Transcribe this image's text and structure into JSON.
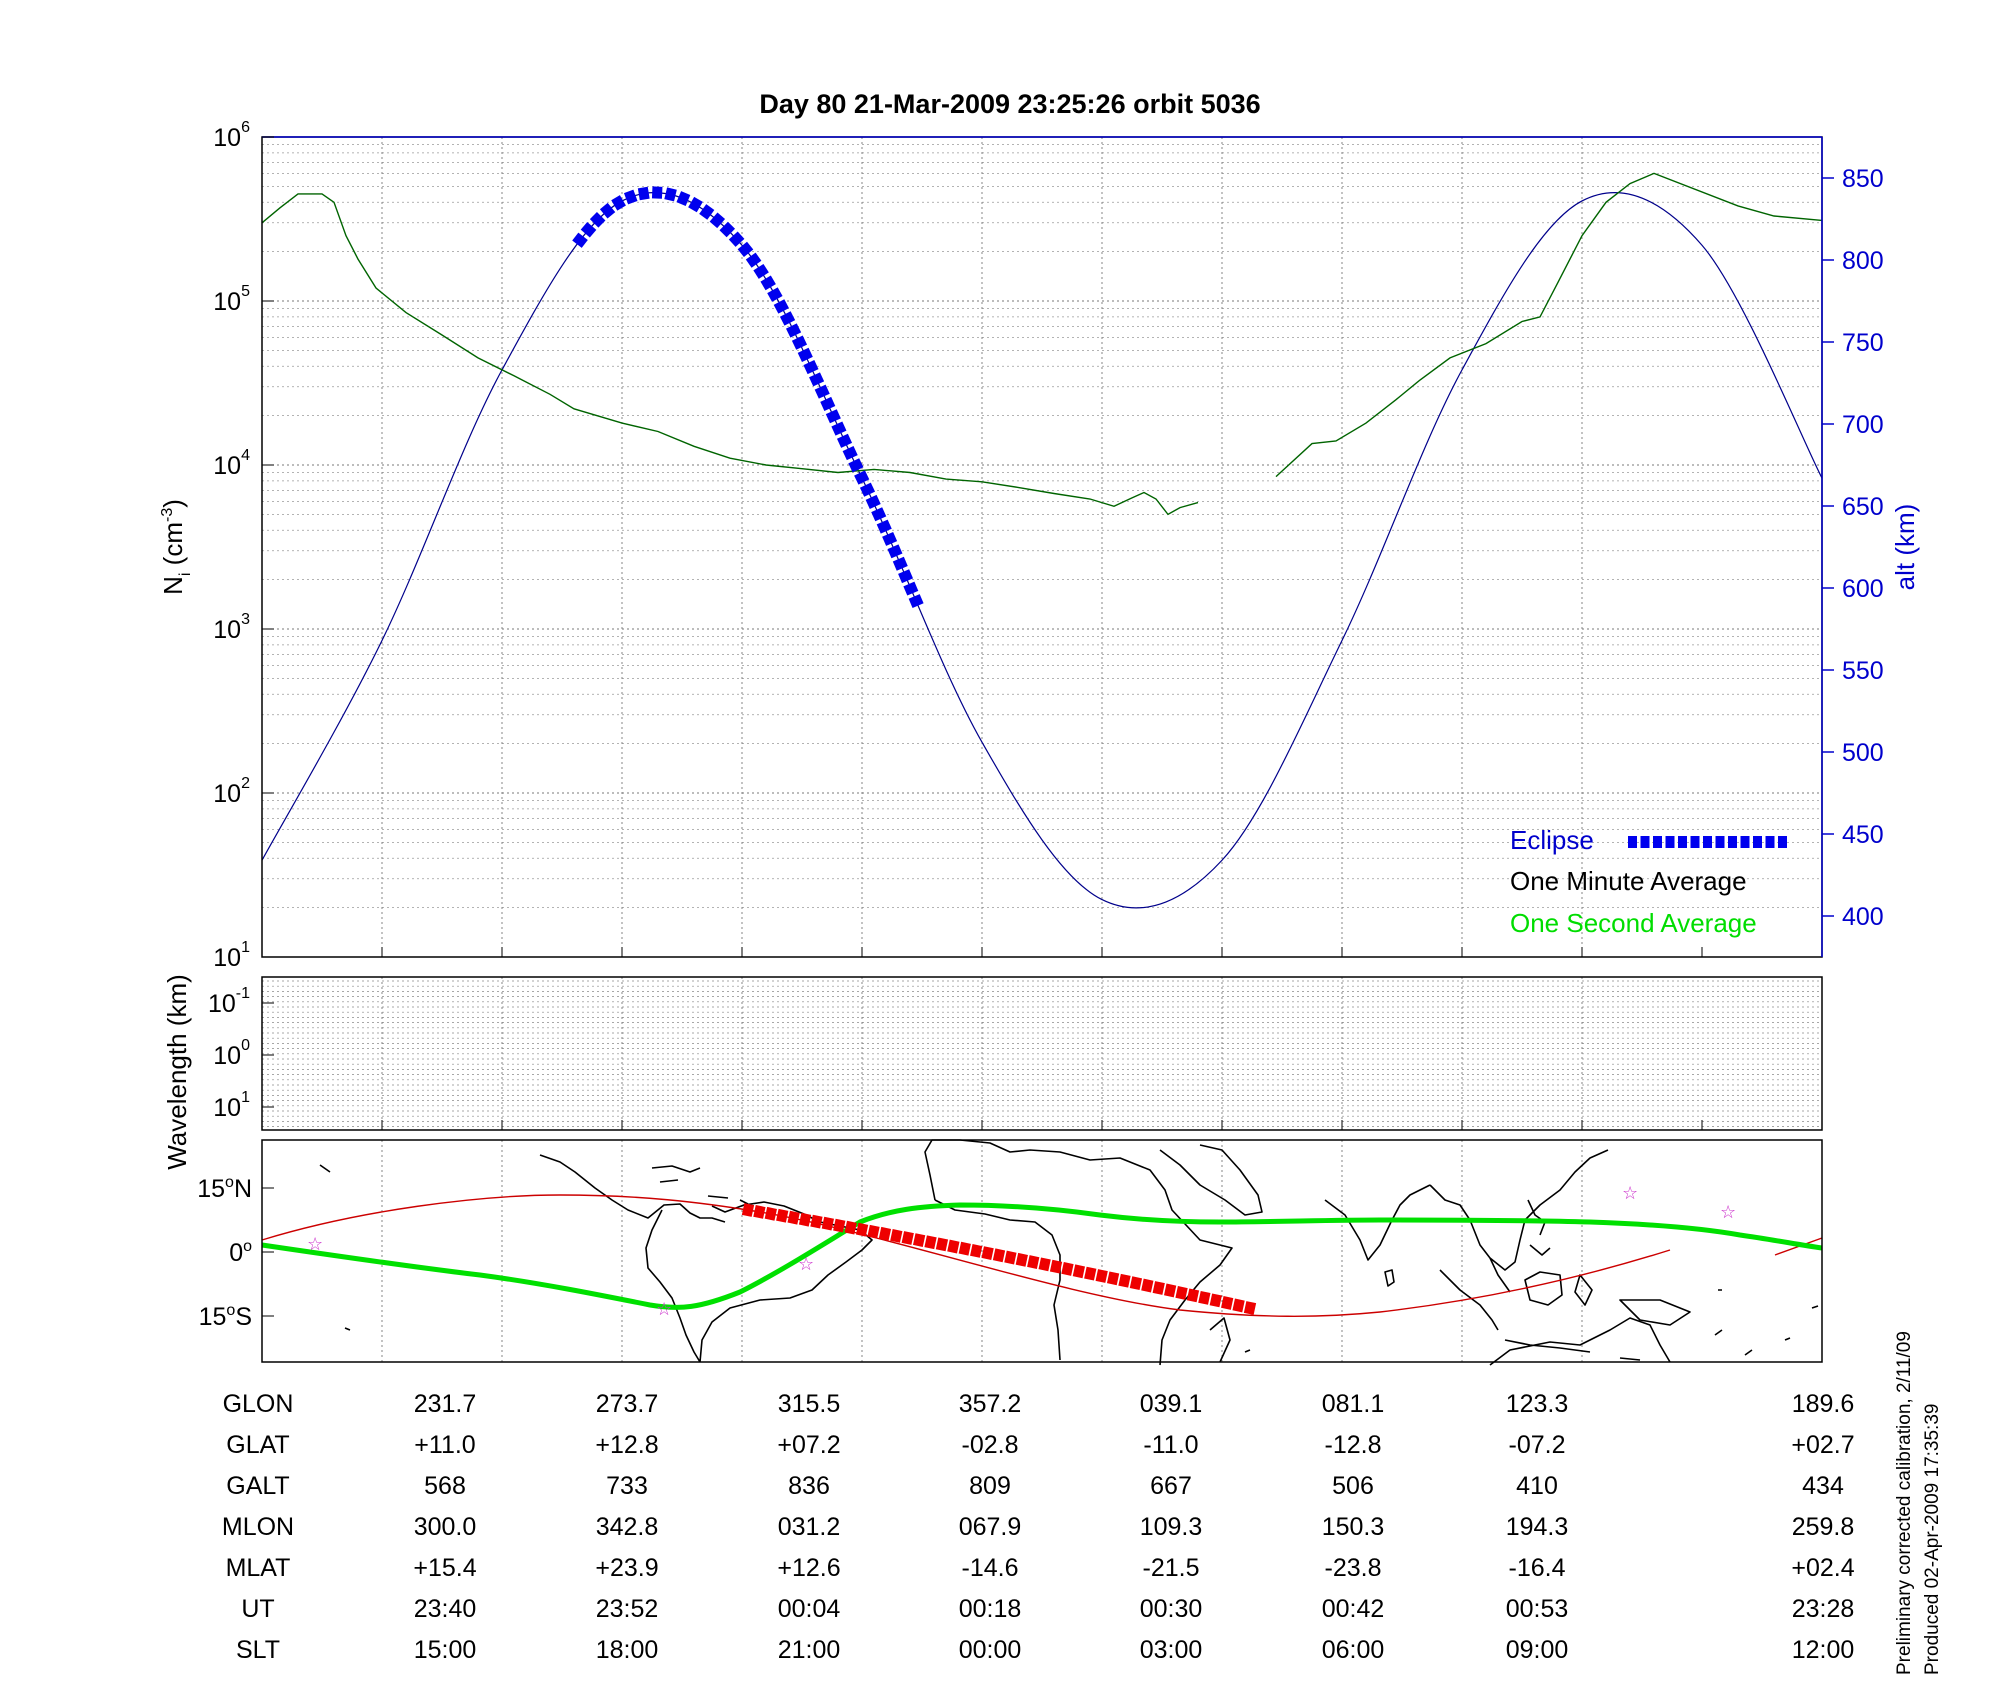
{
  "chart_data": [
    {
      "type": "line",
      "title": "Day 80  21-Mar-2009 23:25:26   orbit 5036",
      "ylabel_left": "N",
      "ylabel_left_sub": "i",
      "ylabel_left_unit": "(cm",
      "ylabel_left_unit_exp": "-3",
      "ylabel_left_unit_close": ")",
      "ylabel_right": "alt (km)",
      "yscale_left": "log",
      "ylim_left": [
        10,
        1000000
      ],
      "yticks_left": [
        {
          "base": "10",
          "exp": "1"
        },
        {
          "base": "10",
          "exp": "2"
        },
        {
          "base": "10",
          "exp": "3"
        },
        {
          "base": "10",
          "exp": "4"
        },
        {
          "base": "10",
          "exp": "5"
        },
        {
          "base": "10",
          "exp": "6"
        }
      ],
      "ylim_right": [
        375,
        875
      ],
      "yticks_right": [
        "400",
        "450",
        "500",
        "550",
        "600",
        "650",
        "700",
        "750",
        "800",
        "850"
      ],
      "grid": true,
      "legend_position": "bottom-right",
      "series": [
        {
          "name": "One Minute Average",
          "color": "#006400",
          "axis": "left",
          "gaps": [
            [
              7.85,
              8.3
            ]
          ],
          "points": [
            [
              0,
              300000
            ],
            [
              0.15,
              370000
            ],
            [
              0.3,
              450000
            ],
            [
              0.5,
              450000
            ],
            [
              0.6,
              400000
            ],
            [
              0.7,
              250000
            ],
            [
              0.8,
              180000
            ],
            [
              0.95,
              120000
            ],
            [
              1.2,
              85000
            ],
            [
              1.5,
              62000
            ],
            [
              1.8,
              45000
            ],
            [
              2.1,
              35000
            ],
            [
              2.4,
              27000
            ],
            [
              2.6,
              22000
            ],
            [
              3.0,
              18000
            ],
            [
              3.3,
              16000
            ],
            [
              3.6,
              13000
            ],
            [
              3.9,
              11000
            ],
            [
              4.2,
              10000
            ],
            [
              4.5,
              9500
            ],
            [
              4.8,
              9000
            ],
            [
              5.1,
              9400
            ],
            [
              5.4,
              9000
            ],
            [
              5.7,
              8200
            ],
            [
              6.0,
              7900
            ],
            [
              6.3,
              7300
            ],
            [
              6.6,
              6700
            ],
            [
              6.9,
              6200
            ],
            [
              7.1,
              5600
            ],
            [
              7.25,
              6300
            ],
            [
              7.35,
              6800
            ],
            [
              7.45,
              6200
            ],
            [
              7.55,
              5000
            ],
            [
              7.65,
              5500
            ],
            [
              7.8,
              5900
            ],
            [
              8.0,
              6200
            ],
            [
              8.2,
              6800
            ],
            [
              8.45,
              8500
            ],
            [
              8.75,
              13500
            ],
            [
              8.95,
              14000
            ],
            [
              9.2,
              18000
            ],
            [
              9.45,
              25000
            ],
            [
              9.65,
              33000
            ],
            [
              9.9,
              45000
            ],
            [
              10.2,
              55000
            ],
            [
              10.5,
              75000
            ],
            [
              10.65,
              80000
            ],
            [
              10.8,
              130000
            ],
            [
              11.0,
              250000
            ],
            [
              11.2,
              400000
            ],
            [
              11.4,
              520000
            ],
            [
              11.6,
              600000
            ],
            [
              12.3,
              380000
            ],
            [
              12.6,
              330000
            ],
            [
              13,
              310000
            ]
          ]
        },
        {
          "name": "alt",
          "color": "#00008b",
          "axis": "right",
          "points": [
            [
              0,
              434
            ],
            [
              1,
              568
            ],
            [
              2,
              733
            ],
            [
              3,
              836
            ],
            [
              4,
              809
            ],
            [
              5,
              667
            ],
            [
              6,
              506
            ],
            [
              7,
              410
            ],
            [
              8,
              434
            ],
            [
              9,
              568
            ],
            [
              10,
              733
            ],
            [
              11,
              836
            ],
            [
              12,
              809
            ],
            [
              13,
              667
            ]
          ]
        }
      ]
    },
    {
      "type": "line",
      "ylabel": "Wavelength (km)",
      "yticks": [
        {
          "base": "10",
          "exp": "-1"
        },
        {
          "base": "10",
          "exp": "0"
        },
        {
          "base": "10",
          "exp": "1"
        }
      ],
      "grid": true
    }
  ],
  "legend": [
    {
      "label": "Eclipse",
      "color": "#0000cc"
    },
    {
      "label": "One Minute Average",
      "color": "#000000"
    },
    {
      "label": "One Second Average",
      "color": "#00dd00"
    }
  ],
  "map": {
    "lat_ticks": [
      {
        "value": "15",
        "suffix": "N"
      },
      {
        "value": "0",
        "suffix": ""
      },
      {
        "value": "15",
        "suffix": "S"
      }
    ],
    "orbit_track_color": "#cc0000",
    "field_line_color": "#00e000",
    "star_color": "#cc33cc"
  },
  "table": {
    "row_labels": [
      "GLON",
      "GLAT",
      "GALT",
      "MLON",
      "MLAT",
      "UT",
      "SLT"
    ],
    "columns": [
      [
        "231.7",
        "+11.0",
        "568",
        "300.0",
        "+15.4",
        "23:40",
        "15:00"
      ],
      [
        "273.7",
        "+12.8",
        "733",
        "342.8",
        "+23.9",
        "23:52",
        "18:00"
      ],
      [
        "315.5",
        "+07.2",
        "836",
        "031.2",
        "+12.6",
        "00:04",
        "21:00"
      ],
      [
        "357.2",
        "-02.8",
        "809",
        "067.9",
        "-14.6",
        "00:18",
        "00:00"
      ],
      [
        "039.1",
        "-11.0",
        "667",
        "109.3",
        "-21.5",
        "00:30",
        "03:00"
      ],
      [
        "081.1",
        "-12.8",
        "506",
        "150.3",
        "-23.8",
        "00:42",
        "06:00"
      ],
      [
        "123.3",
        "-07.2",
        "410",
        "194.3",
        "-16.4",
        "00:53",
        "09:00"
      ],
      [
        "189.6",
        "+02.7",
        "434",
        "259.8",
        "+02.4",
        "23:28",
        "12:00"
      ]
    ]
  },
  "notes": [
    "Preliminary corrected calibration, 2/11/09",
    "Produced 02-Apr-2009 17:35:39"
  ]
}
